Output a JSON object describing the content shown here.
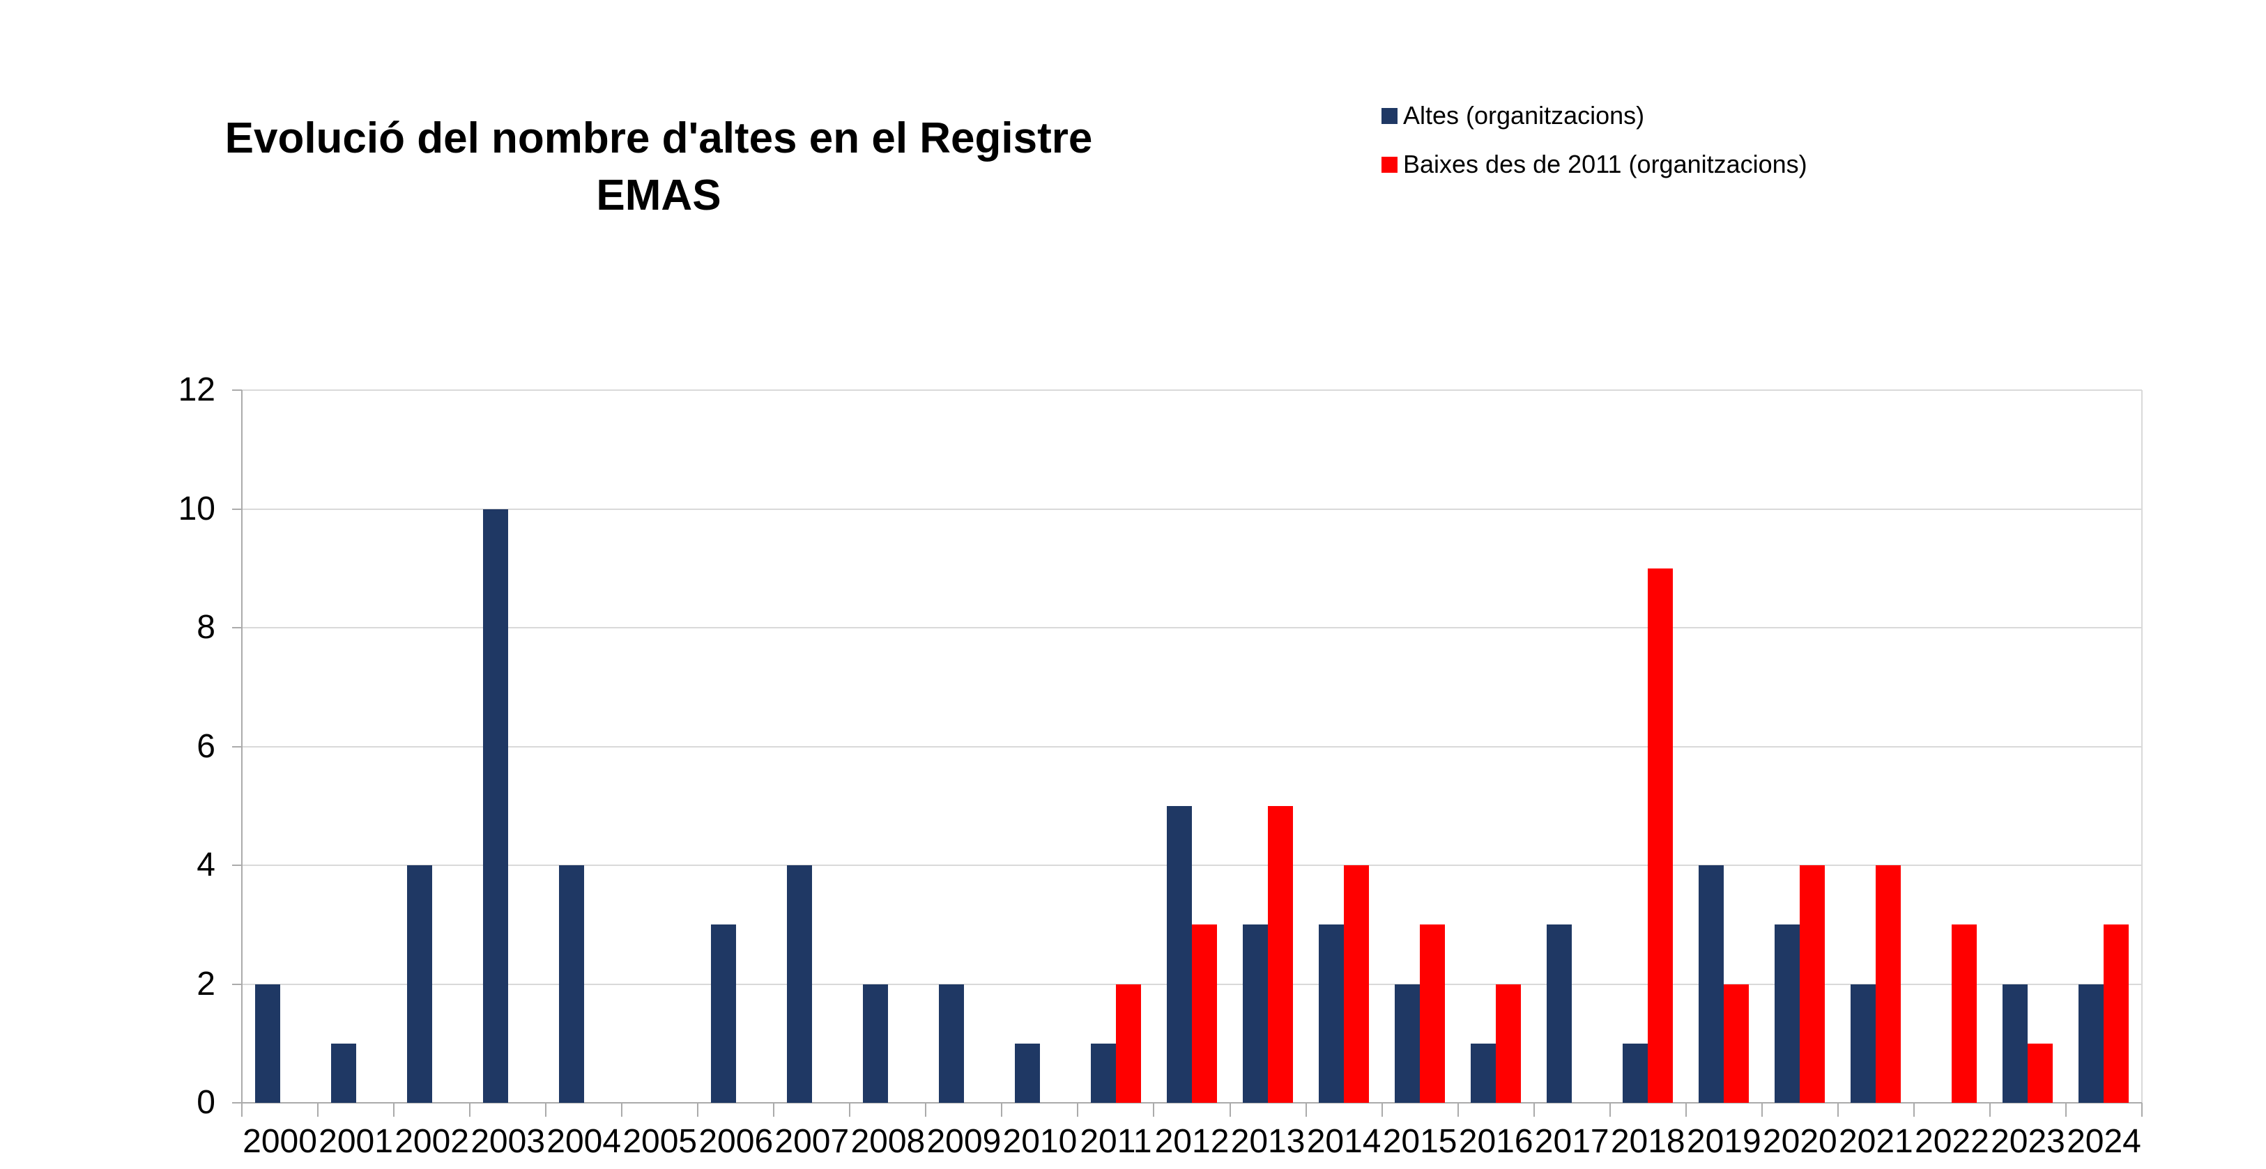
{
  "title": "Evolució del nombre d'altes en el Registre EMAS",
  "chart_data": {
    "type": "bar",
    "title": "Evolució del nombre d'altes en el Registre EMAS",
    "categories": [
      "2000",
      "2001",
      "2002",
      "2003",
      "2004",
      "2005",
      "2006",
      "2007",
      "2008",
      "2009",
      "2010",
      "2011",
      "2012",
      "2013",
      "2014",
      "2015",
      "2016",
      "2017",
      "2018",
      "2019",
      "2020",
      "2021",
      "2022",
      "2023",
      "2024"
    ],
    "series": [
      {
        "name": "Altes (organitzacions)",
        "color": "#1F3864",
        "values": [
          2,
          1,
          4,
          10,
          4,
          0,
          3,
          4,
          2,
          2,
          1,
          1,
          5,
          3,
          3,
          2,
          1,
          3,
          1,
          4,
          3,
          2,
          0,
          2,
          2
        ]
      },
      {
        "name": "Baixes des de 2011 (organitzacions)",
        "color": "#FF0000",
        "values": [
          null,
          null,
          null,
          null,
          null,
          null,
          null,
          null,
          null,
          null,
          null,
          2,
          3,
          5,
          4,
          3,
          2,
          0,
          9,
          2,
          4,
          4,
          3,
          1,
          3
        ]
      }
    ],
    "xlabel": "",
    "ylabel": "",
    "ylim": [
      0,
      12
    ],
    "yticks": [
      0,
      2,
      4,
      6,
      8,
      10,
      12
    ],
    "grid": true,
    "legend_position": "top-right",
    "colors": {
      "gridline": "#D9D9D9",
      "axis": "#ABABAB",
      "text": "#000000",
      "background": "#FFFFFF"
    }
  }
}
